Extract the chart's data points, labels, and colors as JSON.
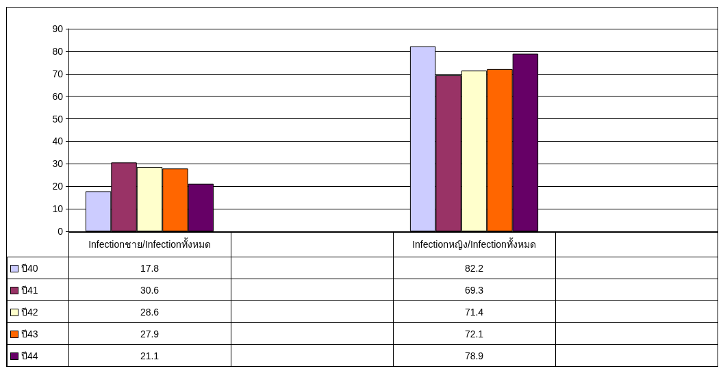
{
  "chart_data": {
    "type": "bar",
    "categories": [
      "Infectionชาย/Infectionทั้งหมด",
      null,
      "Infectionหญิง/Infectionทั้งหมด",
      null
    ],
    "series": [
      {
        "name": "ปี40",
        "color": "#ccccff",
        "values": [
          17.8,
          null,
          82.2,
          null
        ]
      },
      {
        "name": "ปี41",
        "color": "#993366",
        "values": [
          30.6,
          null,
          69.3,
          null
        ]
      },
      {
        "name": "ปี42",
        "color": "#ffffcc",
        "values": [
          28.6,
          null,
          71.4,
          null
        ]
      },
      {
        "name": "ปี43",
        "color": "#ff6600",
        "values": [
          27.9,
          null,
          72.1,
          null
        ]
      },
      {
        "name": "ปี44",
        "color": "#660066",
        "values": [
          21.1,
          null,
          78.9,
          null
        ]
      }
    ],
    "ylim": [
      0,
      90
    ],
    "yticks": [
      0,
      10,
      20,
      30,
      40,
      50,
      60,
      70,
      80,
      90
    ],
    "grid": "y",
    "legend": "bottom left",
    "data_labels": true
  }
}
